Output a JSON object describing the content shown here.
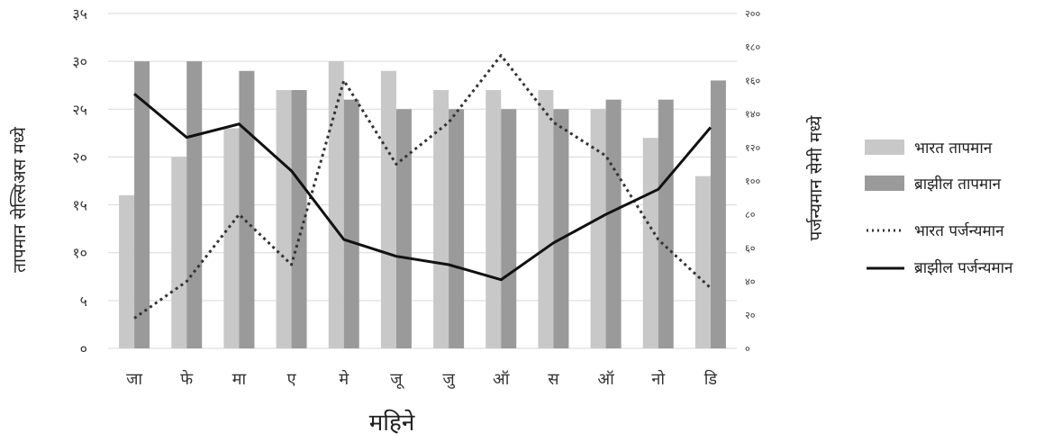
{
  "chart_data": {
    "type": "bar",
    "categories": [
      "जा",
      "फे",
      "मा",
      "ए",
      "मे",
      "जू",
      "जु",
      "ऑ",
      "स",
      "ऑ",
      "नो",
      "डि"
    ],
    "y_left_ticks": [
      "०",
      "५",
      "१०",
      "१५",
      "२०",
      "२५",
      "३०",
      "३५"
    ],
    "y_right_ticks": [
      "०",
      "२०",
      "४०",
      "६०",
      "८०",
      "१००",
      "१२०",
      "१४०",
      "१६०",
      "१८०",
      "२००"
    ],
    "ylim_left": [
      0,
      35
    ],
    "ylim_right": [
      0,
      200
    ],
    "xlabel": "महिने",
    "ylabel_left": "तापमान सेल्सिअस मध्ये",
    "ylabel_right": "पर्जन्यमान सेमी मध्ये",
    "grid": true,
    "legend_position": "right",
    "series": [
      {
        "name": "भारत तापमान",
        "type": "bar",
        "axis": "left",
        "color": "#c8c8c8",
        "values": [
          16,
          20,
          23,
          27,
          30,
          29,
          27,
          27,
          27,
          25,
          22,
          18
        ]
      },
      {
        "name": "ब्राझील तापमान",
        "type": "bar",
        "axis": "left",
        "color": "#9a9a9a",
        "values": [
          30,
          30,
          29,
          27,
          26,
          25,
          25,
          25,
          25,
          26,
          26,
          28
        ]
      },
      {
        "name": "भारत पर्जन्यमान",
        "type": "line",
        "style": "dotted",
        "axis": "right",
        "color": "#333333",
        "values": [
          18,
          40,
          80,
          50,
          160,
          110,
          135,
          175,
          135,
          115,
          65,
          36
        ]
      },
      {
        "name": "ब्राझील पर्जन्यमान",
        "type": "line",
        "style": "solid",
        "axis": "right",
        "color": "#111111",
        "values": [
          152,
          126,
          134,
          106,
          65,
          55,
          50,
          41,
          63,
          80,
          95,
          132
        ]
      }
    ]
  }
}
